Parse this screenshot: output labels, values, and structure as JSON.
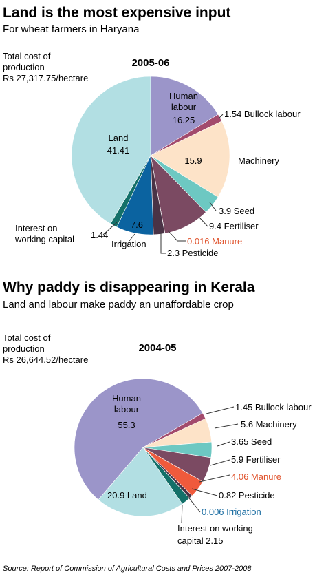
{
  "colors": {
    "land": "#b2dfe3",
    "human_labour": "#9b95c9",
    "bullock_labour": "#a34a6c",
    "machinery": "#fde3c8",
    "seed": "#6dc8c2",
    "fertiliser": "#7b4a62",
    "manure": "#ef5a3c",
    "pesticide": "#4a3346",
    "irrigation": "#0b63a0",
    "interest": "#137069",
    "manure_text": "#e0542e",
    "irrigation_text": "#1e6fa3",
    "leader": "#333333"
  },
  "source_note": "Source: Report of Commission of Agricultural Costs and Prices 2007-2008",
  "chart_data": [
    {
      "type": "pie",
      "title": "Land is the most expensive input",
      "subtitle": "For wheat farmers in Haryana",
      "year": "2005-06",
      "total_label": [
        "Total cost of",
        "production",
        "Rs 27,317.75/hectare"
      ],
      "start_angle_deg": 0,
      "slices": [
        {
          "key": "human_labour",
          "value": 16.25,
          "color_key": "human_labour",
          "label_lines": [
            "Human",
            "labour",
            "16.25"
          ]
        },
        {
          "key": "bullock_labour",
          "value": 1.54,
          "color_key": "bullock_labour",
          "label_lines": [
            "1.54 Bullock labour"
          ]
        },
        {
          "key": "machinery",
          "value": 15.9,
          "color_key": "machinery",
          "label_lines": [
            "15.9"
          ],
          "label_lines_out": [
            "Machinery"
          ]
        },
        {
          "key": "seed",
          "value": 3.9,
          "color_key": "seed",
          "label_lines": [
            "3.9 Seed"
          ]
        },
        {
          "key": "fertiliser",
          "value": 9.4,
          "color_key": "fertiliser",
          "label_lines": [
            "9.4 Fertiliser"
          ]
        },
        {
          "key": "manure",
          "value": 0.016,
          "color_key": "manure",
          "label_lines": [
            "0.016 Manure"
          ]
        },
        {
          "key": "pesticide",
          "value": 2.3,
          "color_key": "pesticide",
          "label_lines": [
            "2.3 Pesticide"
          ]
        },
        {
          "key": "irrigation",
          "value": 7.6,
          "color_key": "irrigation",
          "label_lines": [
            "7.6"
          ],
          "label_lines_out": [
            "Irrigation"
          ]
        },
        {
          "key": "interest",
          "value": 1.44,
          "color_key": "interest",
          "label_lines": [
            "Interest on",
            "working capital",
            "1.44"
          ]
        },
        {
          "key": "land",
          "value": 41.41,
          "color_key": "land",
          "label_lines": [
            "Land",
            "41.41"
          ]
        }
      ]
    },
    {
      "type": "pie",
      "title": "Why paddy is disappearing in Kerala",
      "subtitle": "Land and labour make paddy an unaffordable crop",
      "year": "2004-05",
      "total_label": [
        "Total cost of",
        "production",
        "Rs 26,644.52/hectare"
      ],
      "start_angle_deg": 60,
      "slices": [
        {
          "key": "bullock_labour",
          "value": 1.45,
          "color_key": "bullock_labour",
          "label_lines": [
            "1.45 Bullock labour"
          ]
        },
        {
          "key": "machinery",
          "value": 5.6,
          "color_key": "machinery",
          "label_lines": [
            "5.6 Machinery"
          ]
        },
        {
          "key": "seed",
          "value": 3.65,
          "color_key": "seed",
          "label_lines": [
            "3.65 Seed"
          ]
        },
        {
          "key": "fertiliser",
          "value": 5.9,
          "color_key": "fertiliser",
          "label_lines": [
            "5.9 Fertiliser"
          ]
        },
        {
          "key": "manure",
          "value": 4.06,
          "color_key": "manure",
          "label_lines": [
            "4.06 Manure"
          ]
        },
        {
          "key": "pesticide",
          "value": 0.82,
          "color_key": "pesticide",
          "label_lines": [
            "0.82 Pesticide"
          ]
        },
        {
          "key": "irrigation",
          "value": 0.006,
          "color_key": "irrigation",
          "label_lines": [
            "0.006 Irrigation"
          ]
        },
        {
          "key": "interest",
          "value": 2.15,
          "color_key": "interest",
          "label_lines": [
            "Interest on working",
            "capital 2.15"
          ]
        },
        {
          "key": "land",
          "value": 20.9,
          "color_key": "land",
          "label_lines": [
            "20.9 Land"
          ]
        },
        {
          "key": "human_labour",
          "value": 55.3,
          "color_key": "human_labour",
          "label_lines": [
            "Human",
            "labour",
            "55.3"
          ]
        }
      ]
    }
  ]
}
